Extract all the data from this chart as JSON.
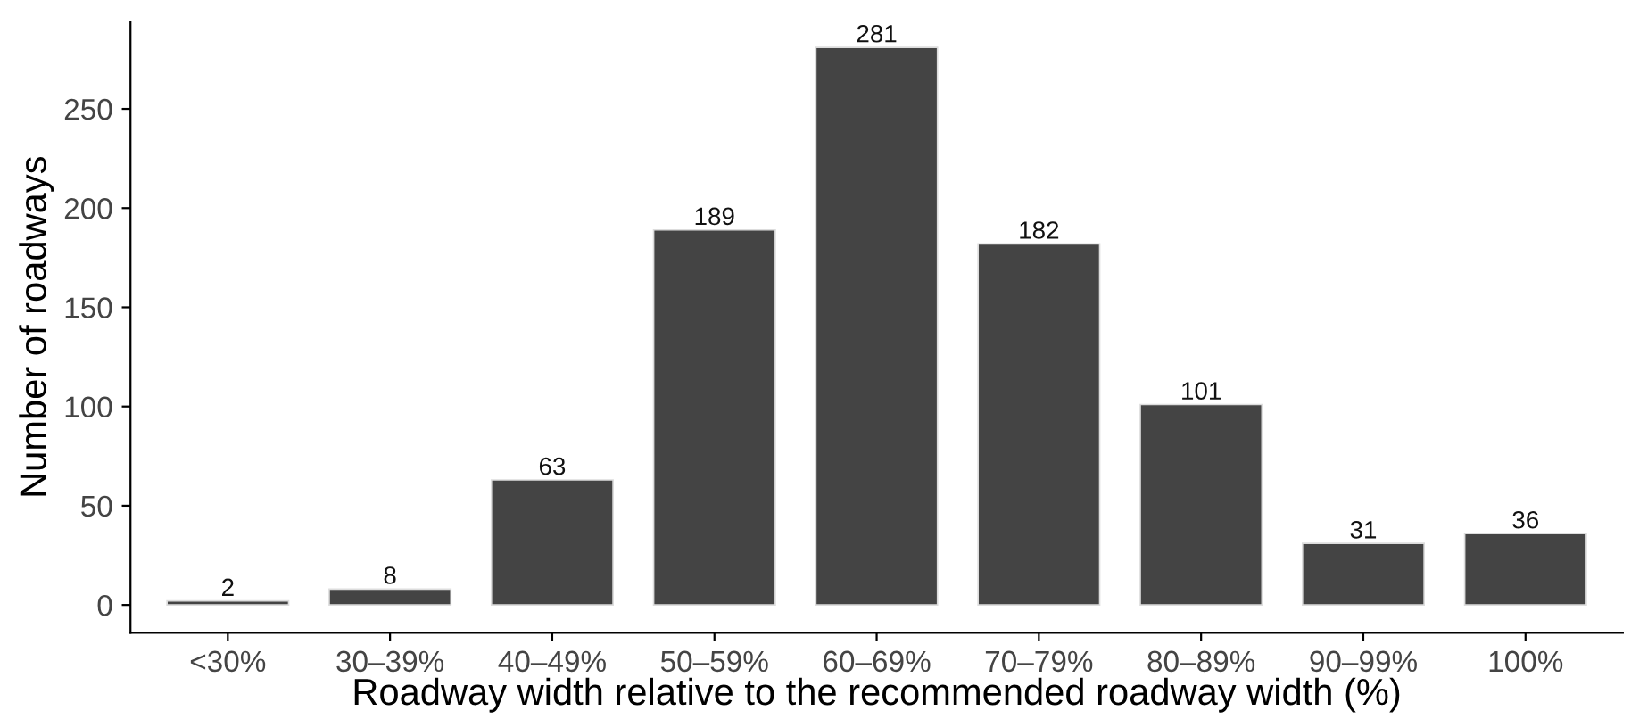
{
  "chart_data": {
    "type": "bar",
    "xlabel": "Roadway width relative to the recommended roadway width (%)",
    "ylabel": "Number of roadways",
    "categories": [
      "<30%",
      "30–39%",
      "40–49%",
      "50–59%",
      "60–69%",
      "70–79%",
      "80–89%",
      "90–99%",
      "100%"
    ],
    "values": [
      2,
      8,
      63,
      189,
      281,
      182,
      101,
      31,
      36
    ],
    "color": "#444444",
    "ylim": [
      -14,
      294
    ],
    "yticks": [
      0,
      50,
      100,
      150,
      200,
      250
    ],
    "data_labels": true,
    "grid": false,
    "legend": false
  }
}
